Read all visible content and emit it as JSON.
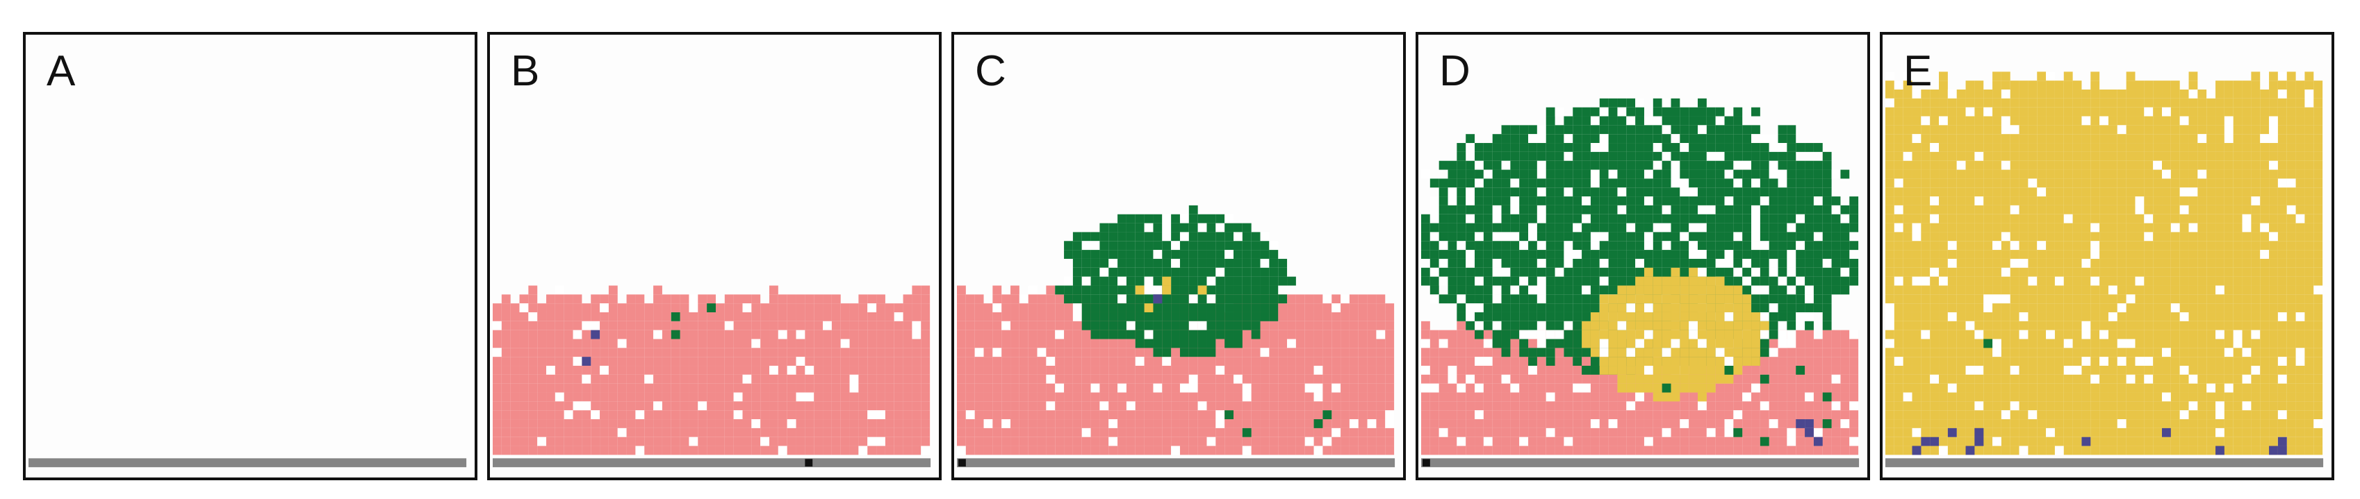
{
  "panels": [
    {
      "label": "A",
      "stage": "empty"
    },
    {
      "label": "B",
      "stage": "pink-layer"
    },
    {
      "label": "C",
      "stage": "green-mound"
    },
    {
      "label": "D",
      "stage": "green-overgrowth-with-yellow"
    },
    {
      "label": "E",
      "stage": "yellow-dominant"
    }
  ],
  "colors": {
    "background": "#fdfdfd",
    "frame": "#111111",
    "baseline": "#858585",
    "pink": "#f28b8b",
    "green": "#0f7637",
    "yellow": "#e8c547",
    "purple": "#4b478f",
    "black": "#111111",
    "white": "#ffffff"
  }
}
